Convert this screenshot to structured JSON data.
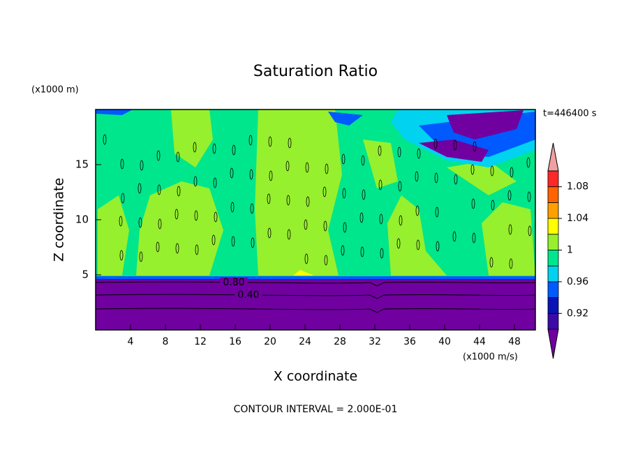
{
  "chart_data": {
    "type": "contour",
    "title": "Saturation Ratio",
    "xlabel": "X coordinate",
    "ylabel": "Z coordinate",
    "x_unit": "(x1000 m/s)",
    "y_unit": "(x1000 m)",
    "time_label": "t=446400 s",
    "footer": "CONTOUR INTERVAL = 2.000E-01",
    "xlim": [
      0,
      50.4
    ],
    "xticks": [
      4,
      8,
      12,
      16,
      20,
      24,
      28,
      32,
      36,
      40,
      44,
      48
    ],
    "ylim": [
      0,
      20
    ],
    "yticks": [
      5,
      10,
      15
    ],
    "levels": [
      0.9,
      0.92,
      0.94,
      0.96,
      0.98,
      1,
      1.02,
      1.04,
      1.06,
      1.08,
      1.1
    ],
    "colors": [
      "#7000a0",
      "#3c0aa8",
      "#0a14b4",
      "#005aff",
      "#00d2f0",
      "#00e68c",
      "#96f02d",
      "#ffff00",
      "#ffa000",
      "#ff6400",
      "#ff2828",
      "#f0a0a0"
    ],
    "colorbar_ticks": [
      0.92,
      0.96,
      1,
      1.04,
      1.08
    ],
    "contour_labels": [
      {
        "value": 0.8,
        "label": "0.80"
      },
      {
        "value": 0.4,
        "label": "0.40"
      }
    ]
  }
}
